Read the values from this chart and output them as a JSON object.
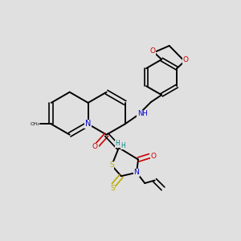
{
  "bg": "#e0e0e0",
  "atom_colors": {
    "C": "#000000",
    "N": "#0000cc",
    "O": "#cc0000",
    "S": "#bbaa00",
    "H": "#008888"
  },
  "figsize": [
    3.0,
    3.0
  ],
  "dpi": 100
}
